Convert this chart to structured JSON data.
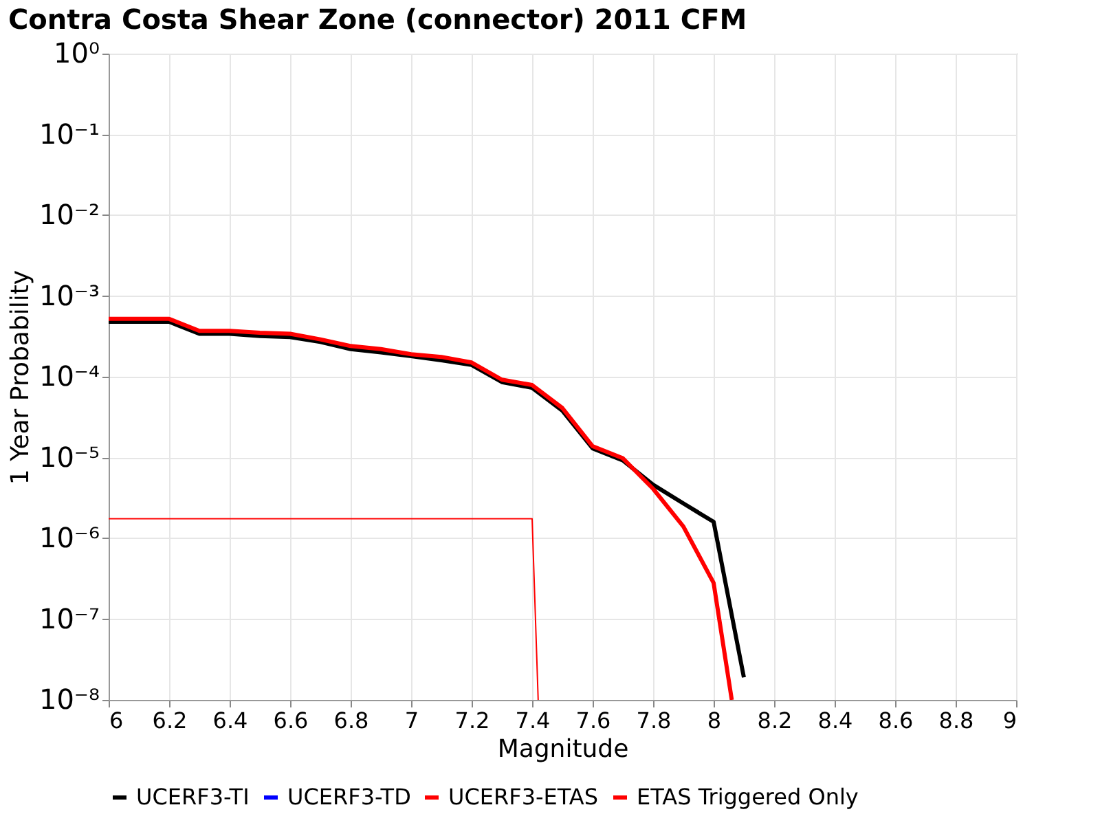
{
  "chart_data": {
    "type": "line",
    "title": "Contra Costa Shear Zone (connector) 2011 CFM",
    "xlabel": "Magnitude",
    "ylabel": "1 Year Probability",
    "log": "y",
    "xlim": [
      6,
      9
    ],
    "xticks": [
      6,
      6.2,
      6.4,
      6.6,
      6.8,
      7,
      7.2,
      7.4,
      7.6,
      7.8,
      8,
      8.2,
      8.4,
      8.6,
      8.8,
      9
    ],
    "ylim": [
      1e-08,
      1
    ],
    "yticks": [
      {
        "value": 1e-08,
        "label": "10⁻⁸"
      },
      {
        "value": 1e-07,
        "label": "10⁻⁷"
      },
      {
        "value": 1e-06,
        "label": "10⁻⁶"
      },
      {
        "value": 1e-05,
        "label": "10⁻⁵"
      },
      {
        "value": 0.0001,
        "label": "10⁻⁴"
      },
      {
        "value": 0.001,
        "label": "10⁻³"
      },
      {
        "value": 0.01,
        "label": "10⁻²"
      },
      {
        "value": 0.1,
        "label": "10⁻¹"
      },
      {
        "value": 1,
        "label": "10⁰"
      }
    ],
    "grid": true,
    "legend": "bottom",
    "line_style": "solid",
    "marker": "none",
    "series": [
      {
        "name": "UCERF3-TI",
        "color": "#000000",
        "x": [
          6.0,
          6.2,
          6.3,
          6.4,
          6.5,
          6.6,
          6.7,
          6.8,
          6.9,
          7.0,
          7.1,
          7.2,
          7.3,
          7.4,
          7.5,
          7.6,
          7.7,
          7.8,
          7.9,
          8.0,
          8.1
        ],
        "values": [
          0.00048,
          0.00048,
          0.00034,
          0.00034,
          0.00032,
          0.00031,
          0.00027,
          0.00022,
          0.0002,
          0.00018,
          0.00016,
          0.00014,
          8.6e-05,
          7.3e-05,
          3.8e-05,
          1.3e-05,
          9.2e-06,
          4.6e-06,
          2.7e-06,
          1.6e-06,
          1.9e-08
        ]
      },
      {
        "name": "UCERF3-TD",
        "color": "#0000ff"
      },
      {
        "name": "UCERF3-ETAS",
        "color": "#ff0000",
        "x": [
          6.0,
          6.2,
          6.3,
          6.4,
          6.5,
          6.6,
          6.7,
          6.8,
          6.9,
          7.0,
          7.1,
          7.2,
          7.3,
          7.4,
          7.5,
          7.6,
          7.7,
          7.8,
          7.9,
          8.0,
          8.06
        ],
        "values": [
          0.00052,
          0.00052,
          0.00037,
          0.00037,
          0.00035,
          0.00034,
          0.00029,
          0.00024,
          0.00022,
          0.00019,
          0.000176,
          0.00015,
          9.2e-05,
          7.9e-05,
          4.1e-05,
          1.38e-05,
          9.8e-06,
          4.1e-06,
          1.4e-06,
          2.8e-07,
          1e-08
        ]
      },
      {
        "name": "ETAS Triggered Only",
        "color": "#ff0000",
        "x": [
          6.0,
          7.4,
          7.42
        ],
        "values": [
          1.75e-06,
          1.75e-06,
          1e-08
        ]
      }
    ]
  }
}
